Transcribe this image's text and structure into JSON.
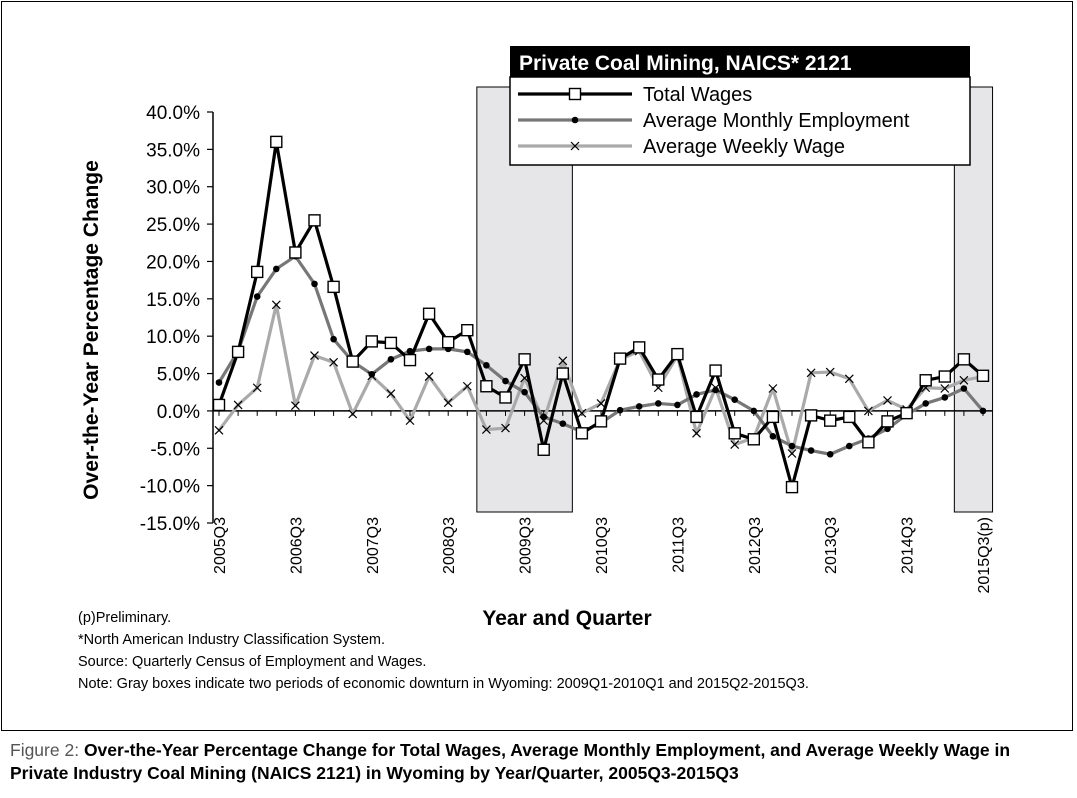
{
  "chart_data": {
    "type": "line",
    "title": "Private Coal Mining, NAICS* 2121",
    "xlabel": "Year and Quarter",
    "ylabel": "Over-the-Year Percentage Change",
    "ylim": [
      -15,
      40
    ],
    "yticks": [
      -15,
      -10,
      -5,
      0,
      5,
      10,
      15,
      20,
      25,
      30,
      35,
      40
    ],
    "ytick_labels": [
      "-15.0%",
      "-10.0%",
      "-5.0%",
      "0.0%",
      "5.0%",
      "10.0%",
      "15.0%",
      "20.0%",
      "25.0%",
      "30.0%",
      "35.0%",
      "40.0%"
    ],
    "x": [
      "2005Q3",
      "2005Q4",
      "2006Q1",
      "2006Q2",
      "2006Q3",
      "2006Q4",
      "2007Q1",
      "2007Q2",
      "2007Q3",
      "2007Q4",
      "2008Q1",
      "2008Q2",
      "2008Q3",
      "2008Q4",
      "2009Q1",
      "2009Q2",
      "2009Q3",
      "2009Q4",
      "2010Q1",
      "2010Q2",
      "2010Q3",
      "2010Q4",
      "2011Q1",
      "2011Q2",
      "2011Q3",
      "2011Q4",
      "2012Q1",
      "2012Q2",
      "2012Q3",
      "2012Q4",
      "2013Q1",
      "2013Q2",
      "2013Q3",
      "2013Q4",
      "2014Q1",
      "2014Q2",
      "2014Q3",
      "2014Q4",
      "2015Q1",
      "2015Q2",
      "2015Q3(p)"
    ],
    "tick_labels": [
      "2005Q3",
      "2006Q3",
      "2007Q3",
      "2008Q3",
      "2009Q3",
      "2010Q3",
      "2011Q3",
      "2012Q3",
      "2013Q3",
      "2014Q3",
      "2015Q3(p)"
    ],
    "tick_index": [
      0,
      4,
      8,
      12,
      16,
      20,
      24,
      28,
      32,
      36,
      40
    ],
    "series": [
      {
        "name": "Total Wages",
        "color": "#000000",
        "marker": "square",
        "values": [
          0.8,
          7.9,
          18.6,
          36.0,
          21.2,
          25.5,
          16.6,
          6.6,
          9.3,
          9.1,
          6.8,
          13.0,
          9.2,
          10.8,
          3.3,
          1.8,
          6.9,
          -5.2,
          5.0,
          -3.0,
          -1.4,
          7.0,
          8.5,
          4.2,
          7.6,
          -0.8,
          5.4,
          -3.0,
          -3.8,
          -0.8,
          -10.2,
          -0.6,
          -1.3,
          -0.8,
          -4.2,
          -1.4,
          -0.3,
          4.1,
          4.6,
          6.9,
          4.7
        ]
      },
      {
        "name": "Average Monthly Employment",
        "color": "#777777",
        "marker": "dot",
        "values": [
          3.8,
          8.0,
          15.3,
          19.0,
          20.7,
          17.0,
          9.6,
          6.6,
          4.9,
          6.9,
          8.0,
          8.3,
          8.3,
          7.9,
          6.1,
          4.0,
          2.5,
          -0.8,
          -1.7,
          -2.8,
          -1.6,
          0.1,
          0.6,
          1.0,
          0.8,
          2.2,
          2.8,
          1.5,
          0.0,
          -3.4,
          -4.7,
          -5.3,
          -5.8,
          -4.7,
          -3.7,
          -2.4,
          -0.5,
          1.0,
          1.8,
          3.0,
          0.0
        ]
      },
      {
        "name": "Average Weekly Wage",
        "color": "#aaaaaa",
        "marker": "x",
        "values": [
          -2.6,
          0.8,
          3.1,
          14.2,
          0.7,
          7.4,
          6.5,
          -0.4,
          4.7,
          2.3,
          -1.3,
          4.6,
          1.1,
          3.3,
          -2.5,
          -2.3,
          4.4,
          -1.3,
          6.7,
          -0.3,
          1.0,
          6.9,
          8.0,
          3.1,
          7.4,
          -3.0,
          3.1,
          -4.5,
          -3.6,
          3.0,
          -5.7,
          5.1,
          5.2,
          4.3,
          0.0,
          1.4,
          0.2,
          3.1,
          3.0,
          4.1,
          4.6
        ]
      }
    ],
    "shaded_periods": [
      [
        "2009Q1",
        "2010Q1"
      ],
      [
        "2015Q2",
        "2015Q3(p)"
      ]
    ],
    "legend_position": "top-right",
    "grid": false
  },
  "notes": [
    "(p)Preliminary.",
    "*North American Industry Classification System.",
    "Source: Quarterly Census of Employment and Wages.",
    "Note: Gray boxes indicate two periods of economic downturn in Wyoming: 2009Q1-2010Q1 and 2015Q2-2015Q3."
  ],
  "caption": {
    "lead": "Figure 2:",
    "text": "Over-the-Year Percentage Change for Total Wages, Average Monthly Employment, and Average Weekly Wage in  Private Industry Coal Mining (NAICS 2121) in Wyoming by Year/Quarter, 2005Q3-2015Q3"
  }
}
